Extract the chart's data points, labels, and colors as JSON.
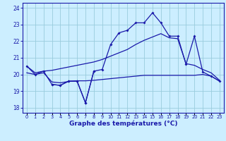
{
  "bg_color": "#cceeff",
  "grid_color": "#99ccdd",
  "line_color": "#1a1aaa",
  "xlabel": "Graphe des températures (°C)",
  "ylim": [
    17.7,
    24.3
  ],
  "yticks": [
    18,
    19,
    20,
    21,
    22,
    23,
    24
  ],
  "xlim": [
    -0.5,
    23.5
  ],
  "actual_x": [
    0,
    1,
    2,
    3,
    4,
    5,
    6,
    7,
    8,
    9,
    10,
    11,
    12,
    13,
    14,
    15,
    16,
    17,
    18,
    19,
    20,
    21,
    22,
    23
  ],
  "actual_y": [
    20.5,
    20.0,
    20.2,
    19.4,
    19.35,
    19.6,
    19.6,
    18.3,
    20.2,
    20.3,
    21.8,
    22.5,
    22.65,
    23.1,
    23.1,
    23.7,
    23.1,
    22.3,
    22.3,
    20.6,
    22.3,
    20.15,
    19.9,
    19.6
  ],
  "upper_x": [
    0,
    1,
    2,
    3,
    4,
    5,
    6,
    7,
    8,
    9,
    10,
    11,
    12,
    13,
    14,
    15,
    16,
    17,
    18,
    19,
    20,
    21,
    22,
    23
  ],
  "upper_y": [
    20.5,
    20.1,
    20.2,
    20.25,
    20.35,
    20.45,
    20.55,
    20.65,
    20.75,
    20.9,
    21.1,
    21.3,
    21.5,
    21.8,
    22.05,
    22.25,
    22.45,
    22.2,
    22.15,
    20.65,
    20.55,
    20.3,
    20.1,
    19.65
  ],
  "lower_x": [
    0,
    1,
    2,
    3,
    4,
    5,
    6,
    7,
    8,
    9,
    10,
    11,
    12,
    13,
    14,
    15,
    16,
    17,
    18,
    19,
    20,
    21,
    22,
    23
  ],
  "lower_y": [
    20.1,
    20.0,
    20.1,
    19.55,
    19.5,
    19.58,
    19.62,
    19.62,
    19.65,
    19.7,
    19.75,
    19.8,
    19.85,
    19.9,
    19.95,
    19.95,
    19.95,
    19.95,
    19.95,
    19.95,
    19.95,
    20.0,
    19.9,
    19.6
  ],
  "seg_x": [
    3,
    4,
    5,
    6,
    7,
    8
  ],
  "seg_y": [
    19.4,
    19.35,
    19.6,
    19.6,
    18.3,
    20.2
  ]
}
